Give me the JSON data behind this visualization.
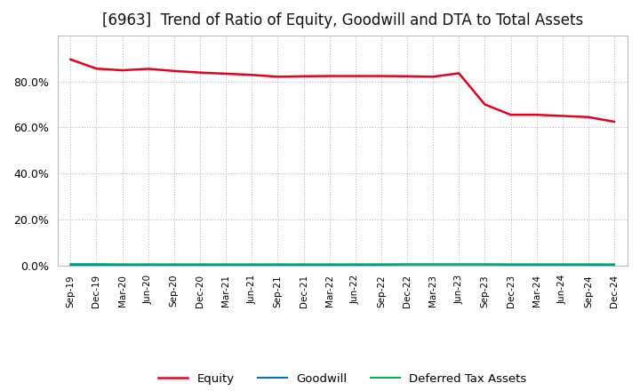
{
  "title": "[6963]  Trend of Ratio of Equity, Goodwill and DTA to Total Assets",
  "x_labels": [
    "Sep-19",
    "Dec-19",
    "Mar-20",
    "Jun-20",
    "Sep-20",
    "Dec-20",
    "Mar-21",
    "Jun-21",
    "Sep-21",
    "Dec-21",
    "Mar-22",
    "Jun-22",
    "Sep-22",
    "Dec-22",
    "Mar-23",
    "Jun-23",
    "Sep-23",
    "Dec-23",
    "Mar-24",
    "Jun-24",
    "Sep-24",
    "Dec-24"
  ],
  "equity": [
    0.895,
    0.855,
    0.848,
    0.854,
    0.845,
    0.838,
    0.833,
    0.828,
    0.82,
    0.822,
    0.823,
    0.823,
    0.823,
    0.822,
    0.82,
    0.835,
    0.7,
    0.655,
    0.655,
    0.65,
    0.645,
    0.625
  ],
  "goodwill": [
    0.002,
    0.002,
    0.002,
    0.002,
    0.002,
    0.003,
    0.003,
    0.003,
    0.003,
    0.004,
    0.004,
    0.004,
    0.005,
    0.006,
    0.006,
    0.006,
    0.006,
    0.005,
    0.005,
    0.005,
    0.005,
    0.004
  ],
  "dta": [
    0.008,
    0.008,
    0.007,
    0.007,
    0.007,
    0.007,
    0.007,
    0.007,
    0.007,
    0.007,
    0.007,
    0.007,
    0.007,
    0.007,
    0.007,
    0.007,
    0.007,
    0.007,
    0.007,
    0.007,
    0.007,
    0.007
  ],
  "equity_color": "#e8001c",
  "goodwill_color": "#0070c0",
  "dta_color": "#00b050",
  "bg_color": "#ffffff",
  "plot_bg_color": "#ffffff",
  "grid_color": "#bbbbbb",
  "ylim": [
    0.0,
    1.0
  ],
  "yticks": [
    0.0,
    0.2,
    0.4,
    0.6,
    0.8
  ],
  "title_fontsize": 12,
  "legend_labels": [
    "Equity",
    "Goodwill",
    "Deferred Tax Assets"
  ]
}
